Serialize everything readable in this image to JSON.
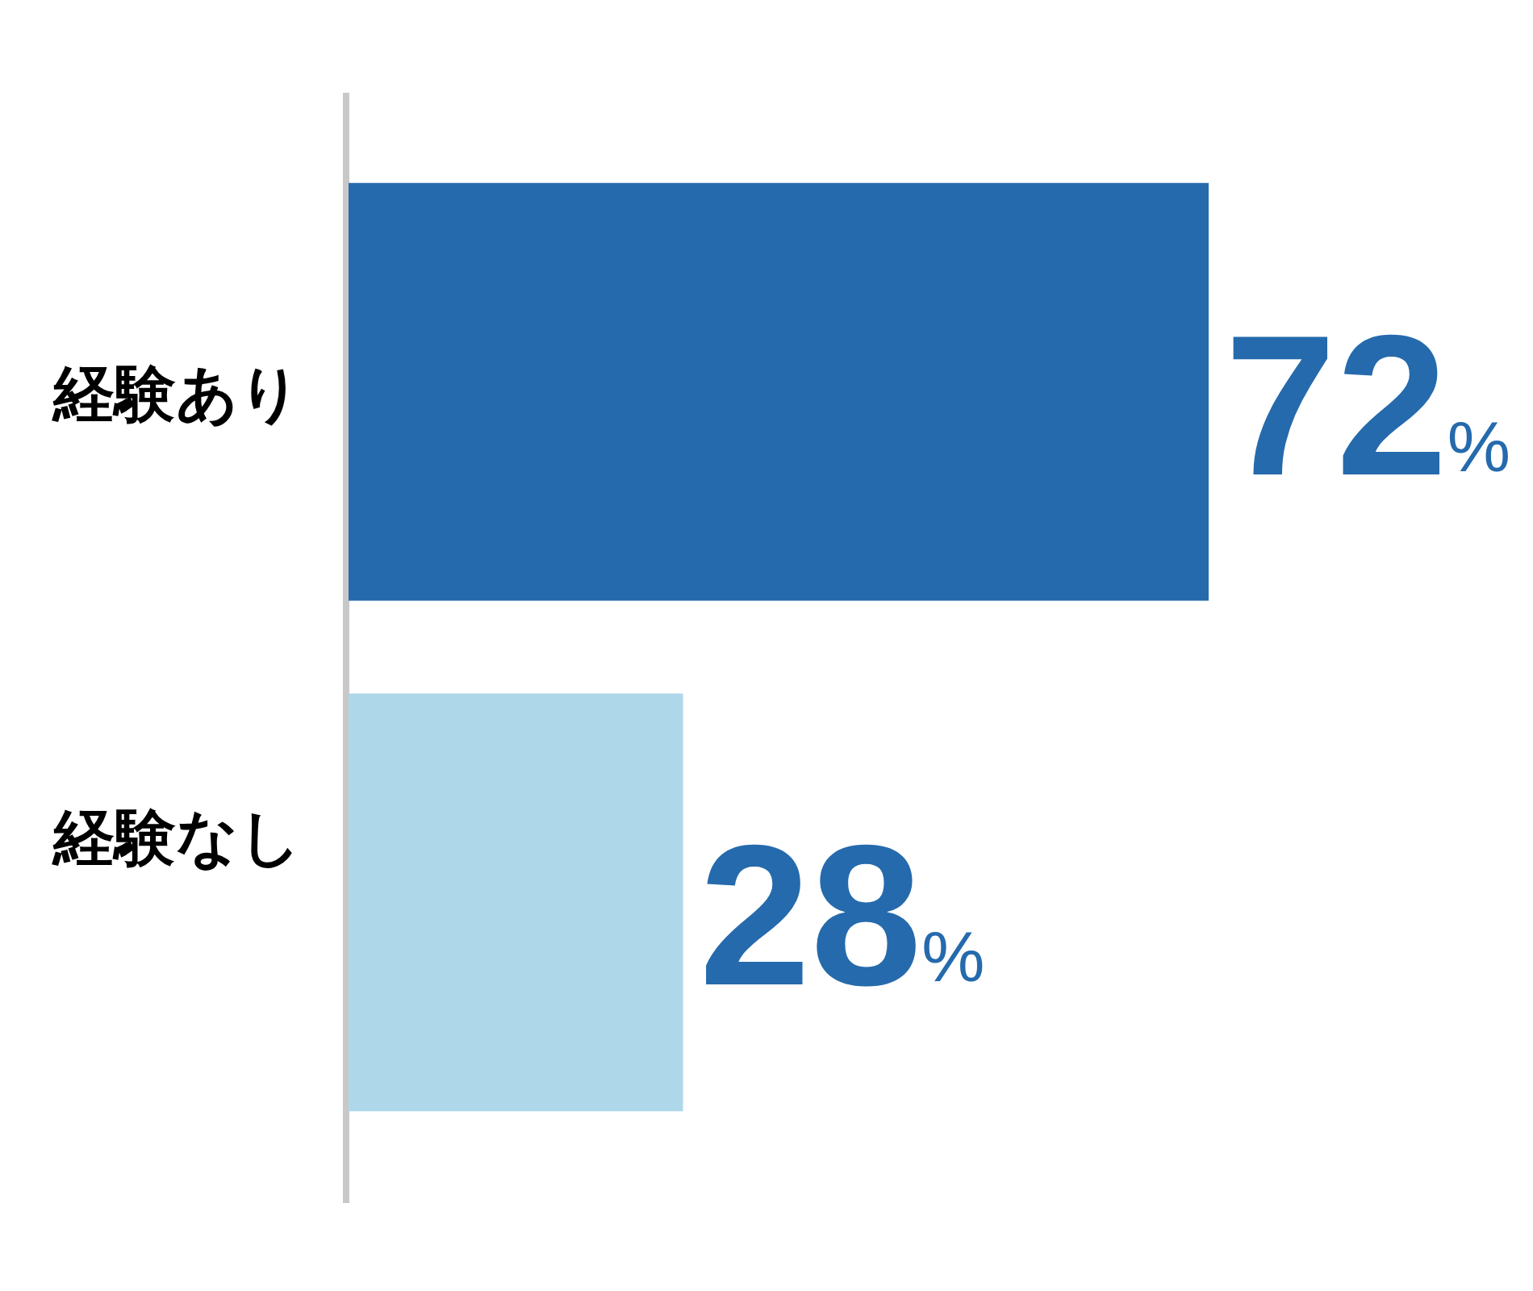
{
  "chart_data": {
    "type": "bar",
    "orientation": "horizontal",
    "categories": [
      "経験あり",
      "経験なし"
    ],
    "values": [
      72,
      28
    ],
    "colors": [
      "#256aac",
      "#afd7ea"
    ],
    "value_labels": [
      "72%",
      "28%"
    ]
  }
}
